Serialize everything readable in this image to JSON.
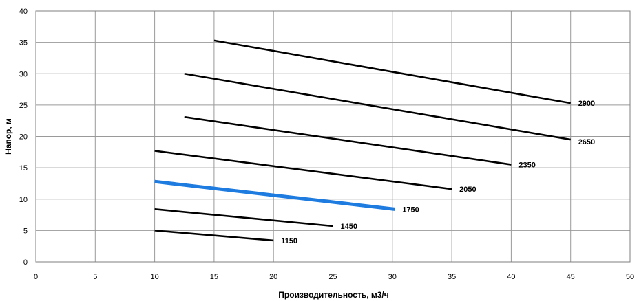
{
  "chart_data": {
    "type": "line",
    "title": "",
    "xlabel": "Производительность, м3/ч",
    "ylabel": "Напор, м",
    "xlim": [
      0,
      50
    ],
    "ylim": [
      0,
      40
    ],
    "xticks": [
      "0",
      "5",
      "10",
      "15",
      "20",
      "25",
      "30",
      "35",
      "40",
      "45",
      "50"
    ],
    "yticks": [
      "0",
      "5",
      "10",
      "15",
      "20",
      "25",
      "30",
      "35",
      "40"
    ],
    "grid": true,
    "legend": "none",
    "series": [
      {
        "label": "2900",
        "color": "#000000",
        "highlight": false,
        "points": [
          [
            15,
            35.3
          ],
          [
            45,
            25.3
          ]
        ]
      },
      {
        "label": "2650",
        "color": "#000000",
        "highlight": false,
        "points": [
          [
            12.5,
            30.0
          ],
          [
            45,
            19.5
          ]
        ]
      },
      {
        "label": "2350",
        "color": "#000000",
        "highlight": false,
        "points": [
          [
            12.5,
            23.1
          ],
          [
            40,
            15.5
          ]
        ]
      },
      {
        "label": "2050",
        "color": "#000000",
        "highlight": false,
        "points": [
          [
            10,
            17.7
          ],
          [
            35,
            11.6
          ]
        ]
      },
      {
        "label": "1750",
        "color": "#1e7be0",
        "highlight": true,
        "points": [
          [
            10,
            12.8
          ],
          [
            30.2,
            8.4
          ]
        ]
      },
      {
        "label": "1450",
        "color": "#000000",
        "highlight": false,
        "points": [
          [
            10,
            8.4
          ],
          [
            25,
            5.7
          ]
        ]
      },
      {
        "label": "1150",
        "color": "#000000",
        "highlight": false,
        "points": [
          [
            10,
            5.0
          ],
          [
            20,
            3.4
          ]
        ]
      }
    ]
  }
}
